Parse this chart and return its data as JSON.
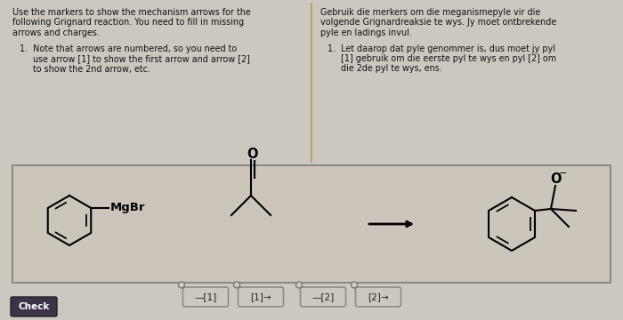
{
  "bg_color": "#ccc8c0",
  "top_bg": "#ccc8c0",
  "reaction_box_bg": "#ccc5bc",
  "text_color": "#111111",
  "title_left_lines": [
    "Use the markers to show the mechanism arrows for the",
    "following Grignard reaction. You need to fill in missing",
    "arrows and charges."
  ],
  "note_left_lines": [
    "1.  Note that arrows are numbered, so you need to",
    "     use arrow [1] to show the first arrow and arrow [2]",
    "     to show the 2nd arrow, etc."
  ],
  "title_right_lines": [
    "Gebruik die merkers om die meganismepyle vir die",
    "volgende Grignardreaksie te wys. Jy moet ontbrekende",
    "pyle en ladings invul."
  ],
  "note_right_lines": [
    "1.  Let daarop dat pyle genommer is, dus moet jy pyl",
    "     [1] gebruik om die eerste pyl te wys en pyl [2] om",
    "     die 2de pyl te wys, ens."
  ],
  "check_label": "Check",
  "check_bg": "#3d3348",
  "marker_labels": [
    "—[1]",
    "[1]→",
    "—[2]",
    "[2]→"
  ],
  "reaction_box_border": "#888880",
  "divider_color": "#b8a060"
}
